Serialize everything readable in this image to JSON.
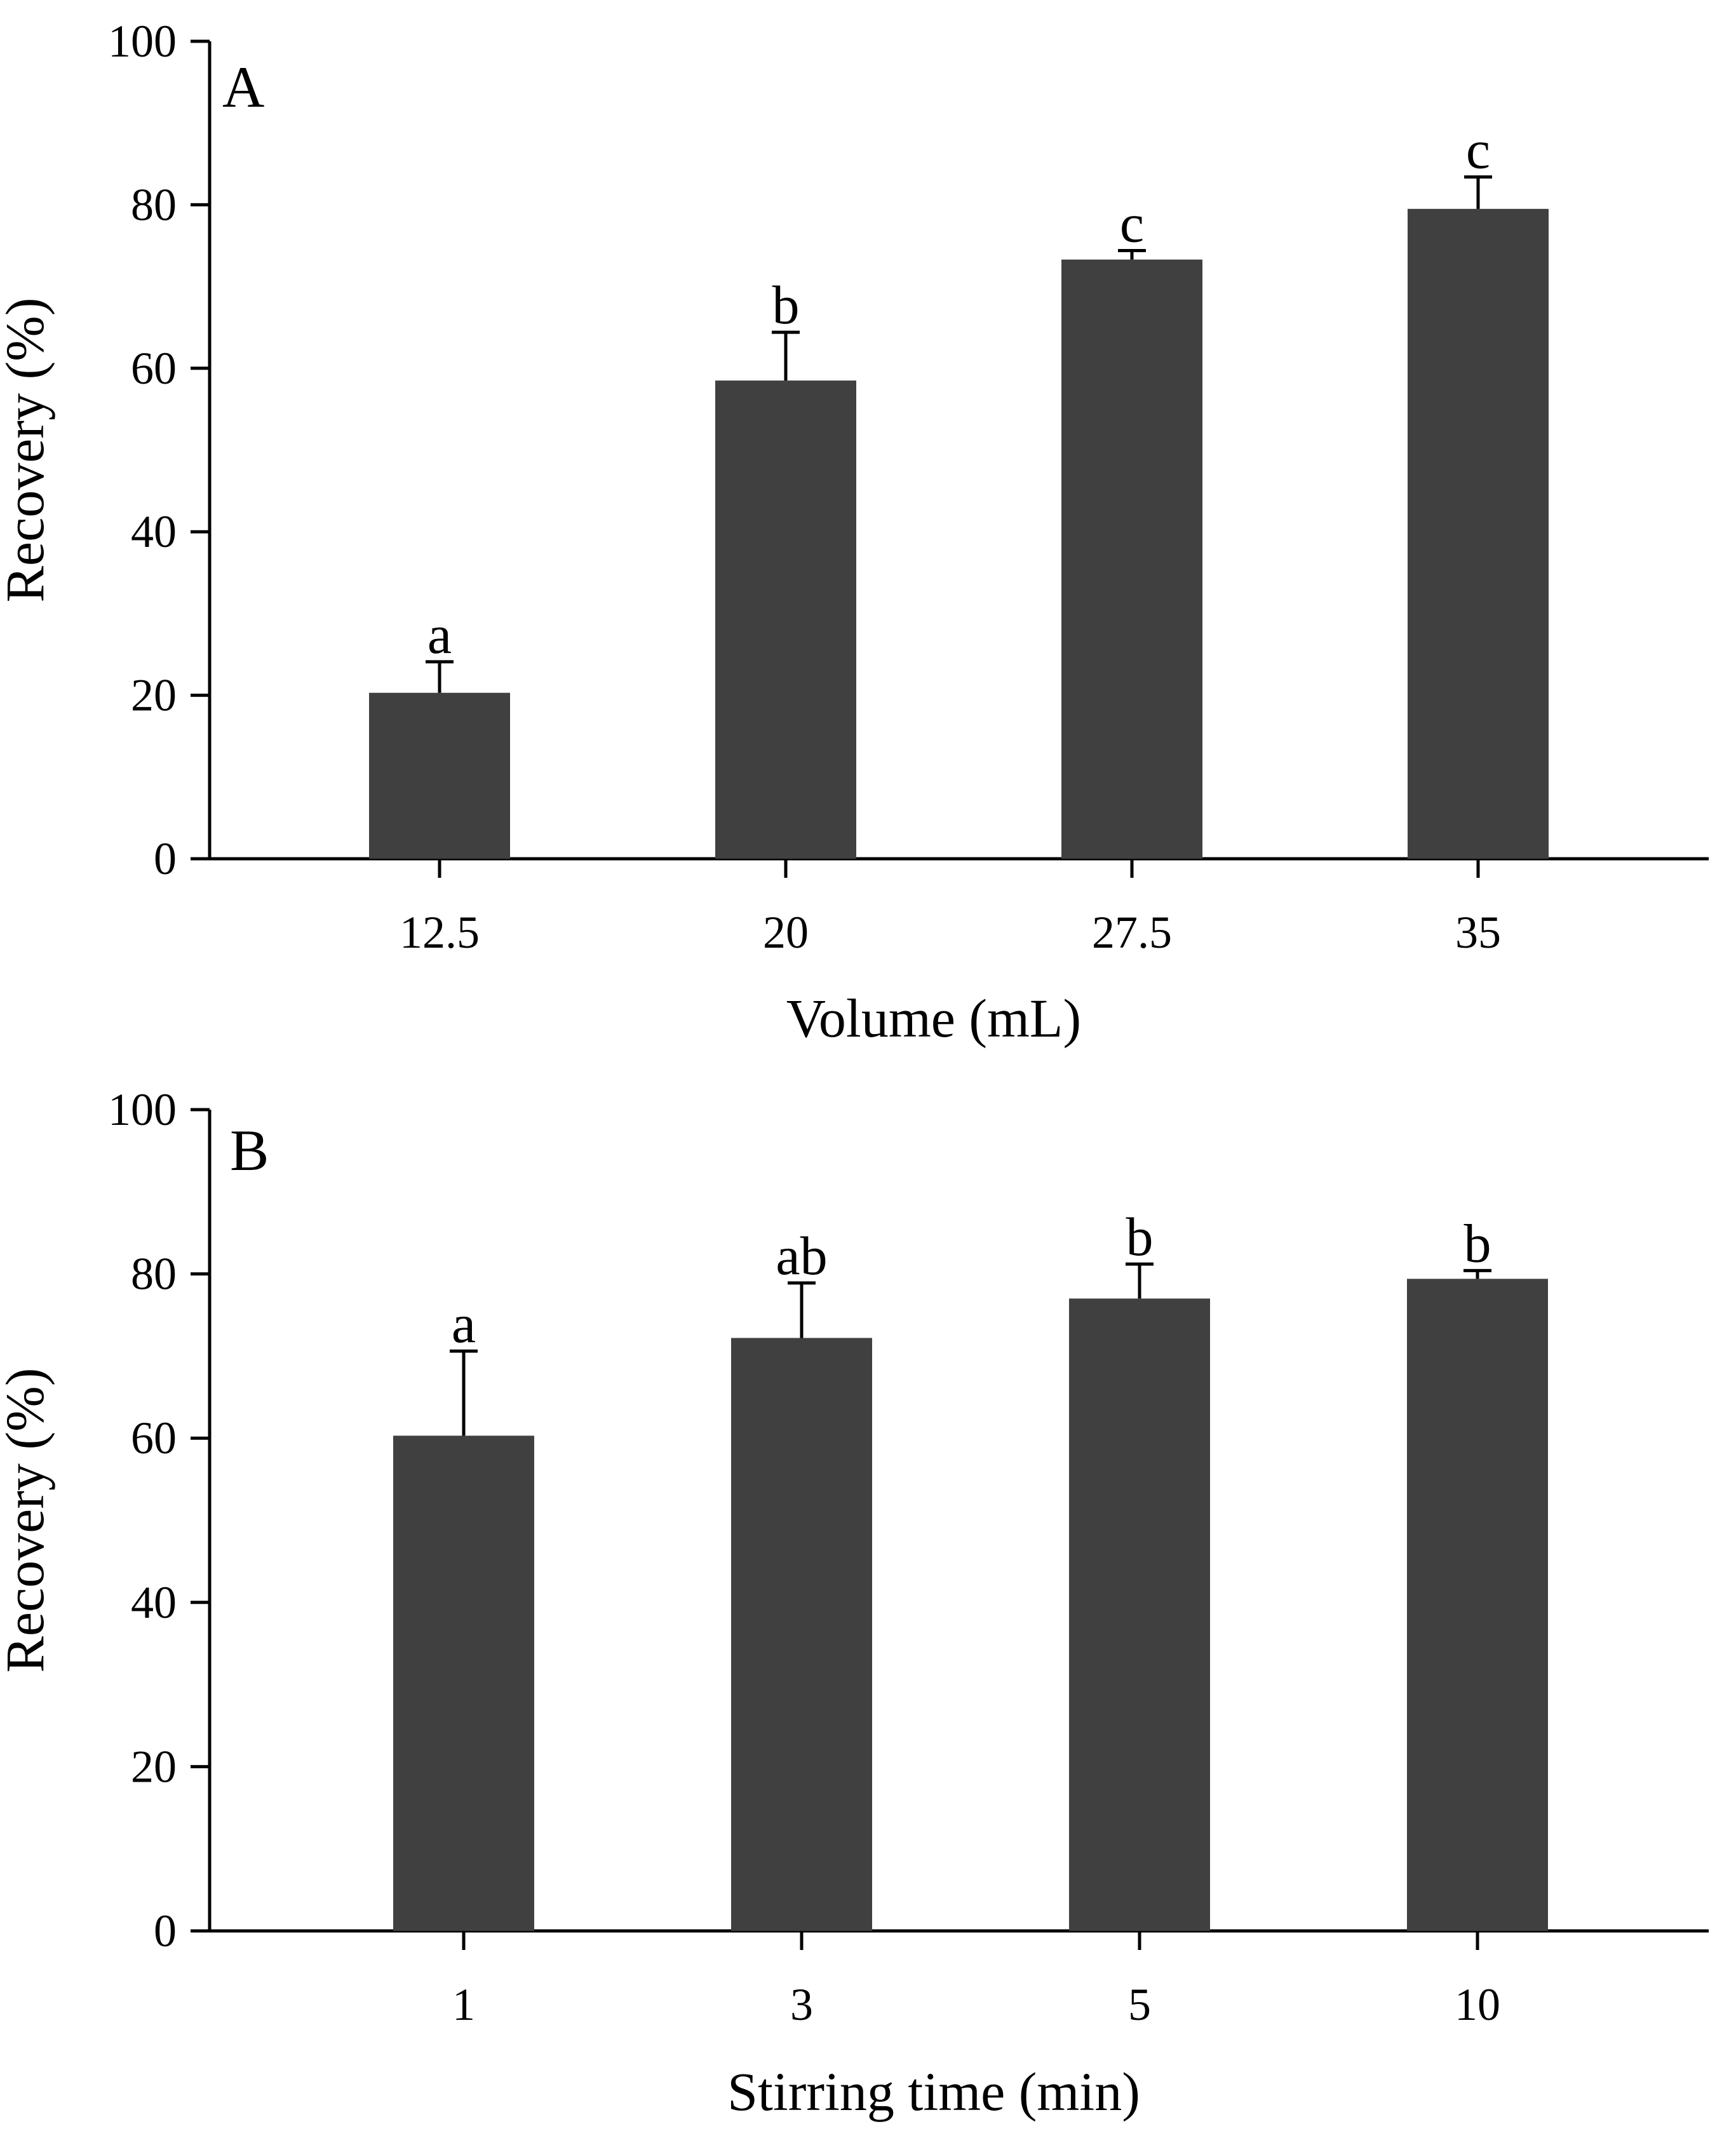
{
  "colors": {
    "bar": "#404040",
    "axis": "#000000",
    "background": "#ffffff"
  },
  "chart_data": [
    {
      "type": "bar",
      "panel": "A",
      "categories": [
        "12.5",
        "20",
        "27.5",
        "35"
      ],
      "values": [
        20.3,
        58.5,
        73.3,
        79.5
      ],
      "errors": [
        3.8,
        5.9,
        1.1,
        3.9
      ],
      "significance": [
        "a",
        "b",
        "c",
        "c"
      ],
      "xlabel": "Volume (mL)",
      "ylabel": "Recovery (%)",
      "ylim": [
        0,
        100
      ],
      "yticks": [
        "0",
        "20",
        "40",
        "60",
        "80",
        "100"
      ],
      "grid": false,
      "legend": false
    },
    {
      "type": "bar",
      "panel": "B",
      "categories": [
        "1",
        "3",
        "5",
        "10"
      ],
      "values": [
        60.3,
        72.2,
        77.0,
        79.4
      ],
      "errors": [
        10.3,
        6.7,
        4.2,
        1.0
      ],
      "significance": [
        "a",
        "ab",
        "b",
        "b"
      ],
      "xlabel": "Stirring time (min)",
      "ylabel": "Recovery (%)",
      "ylim": [
        0,
        100
      ],
      "yticks": [
        "0",
        "20",
        "40",
        "60",
        "80",
        "100"
      ],
      "grid": false,
      "legend": false
    }
  ]
}
